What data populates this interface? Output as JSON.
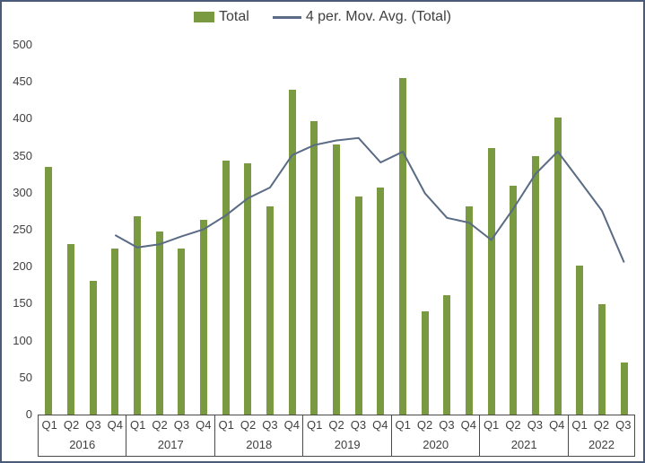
{
  "chart_data": {
    "type": "bar",
    "title": "",
    "grid": false,
    "legend_position": "top",
    "ylim": [
      0,
      500
    ],
    "yticks": [
      0,
      50,
      100,
      150,
      200,
      250,
      300,
      350,
      400,
      450,
      500
    ],
    "year_groups": [
      {
        "year": "2016",
        "quarters": [
          "Q1",
          "Q2",
          "Q3",
          "Q4"
        ]
      },
      {
        "year": "2017",
        "quarters": [
          "Q1",
          "Q2",
          "Q3",
          "Q4"
        ]
      },
      {
        "year": "2018",
        "quarters": [
          "Q1",
          "Q2",
          "Q3",
          "Q4"
        ]
      },
      {
        "year": "2019",
        "quarters": [
          "Q1",
          "Q2",
          "Q3",
          "Q4"
        ]
      },
      {
        "year": "2020",
        "quarters": [
          "Q1",
          "Q2",
          "Q3",
          "Q4"
        ]
      },
      {
        "year": "2021",
        "quarters": [
          "Q1",
          "Q2",
          "Q3",
          "Q4"
        ]
      },
      {
        "year": "2022",
        "quarters": [
          "Q1",
          "Q2",
          "Q3"
        ]
      }
    ],
    "series": [
      {
        "name": "Total",
        "type": "bar",
        "color": "#7A9A42",
        "values": [
          335,
          230,
          181,
          225,
          268,
          247,
          224,
          263,
          343,
          340,
          282,
          439,
          397,
          365,
          295,
          307,
          455,
          140,
          162,
          281,
          361,
          310,
          350,
          402,
          202,
          149,
          70
        ]
      },
      {
        "name": "4 per. Mov. Avg. (Total)",
        "type": "line",
        "color": "#5A6B85",
        "period": 4,
        "values": [
          null,
          null,
          null,
          242.75,
          226,
          230.25,
          241,
          250.5,
          269.25,
          292.5,
          307,
          351,
          364.5,
          370.75,
          374,
          341,
          355.5,
          299.25,
          266,
          259.5,
          236,
          278.5,
          325.5,
          355.75,
          316,
          275.75,
          205.75
        ]
      }
    ]
  },
  "frame": {
    "border_color": "#4A5A78",
    "axis_box_line_color": "#4a4a4a",
    "text_color": "#404040"
  }
}
